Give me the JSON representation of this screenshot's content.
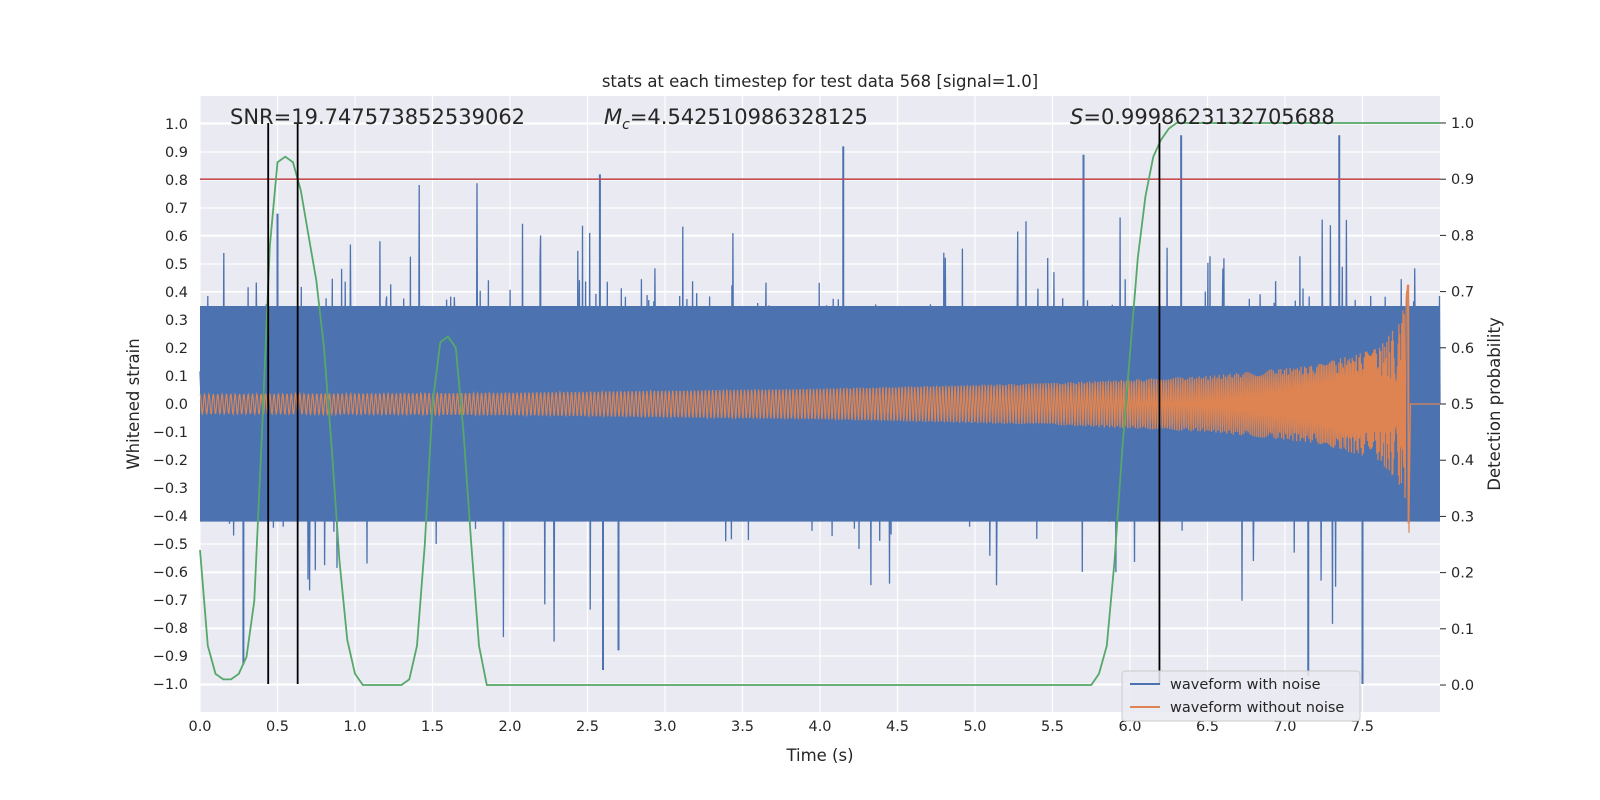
{
  "chart_data": {
    "type": "line",
    "title": "stats at each timestep for test data 568 [signal=1.0]",
    "xlabel": "Time (s)",
    "ylabel": "Whitened strain",
    "y2label": "Detection probability",
    "xlim": [
      0.0,
      8.0
    ],
    "ylim": [
      -1.1,
      1.1
    ],
    "y2lim": [
      -0.048,
      1.048
    ],
    "x_ticks": [
      "0.0",
      "0.5",
      "1.0",
      "1.5",
      "2.0",
      "2.5",
      "3.0",
      "3.5",
      "4.0",
      "4.5",
      "5.0",
      "5.5",
      "6.0",
      "6.5",
      "7.0",
      "7.5"
    ],
    "y_ticks": [
      "1.0",
      "0.9",
      "0.8",
      "0.7",
      "0.6",
      "0.5",
      "0.4",
      "0.3",
      "0.2",
      "0.1",
      "0.0",
      "−0.1",
      "−0.2",
      "−0.3",
      "−0.4",
      "−0.5",
      "−0.6",
      "−0.7",
      "−0.8",
      "−0.9",
      "−1.0"
    ],
    "y2_ticks": [
      "1.0",
      "0.9",
      "0.8",
      "0.7",
      "0.6",
      "0.5",
      "0.4",
      "0.3",
      "0.2",
      "0.1",
      "0.0"
    ],
    "annotations": {
      "snr": "SNR=19.747573852539062",
      "mc_symbol": "M",
      "mc_sub": "c",
      "mc_value": "=4.542510986328125",
      "s_symbol": "S",
      "s_value": "=0.9998623132705688"
    },
    "threshold": {
      "value": 0.9,
      "axis": "y2",
      "color": "#c44e52"
    },
    "vertical_markers": [
      0.44,
      0.63,
      6.19
    ],
    "series": [
      {
        "name": "waveform with noise",
        "color": "#4c72b0",
        "axis": "y",
        "x_range": [
          0.0,
          8.0
        ],
        "spike_peaks": [
          {
            "x": 0.28,
            "y": -0.93
          },
          {
            "x": 0.5,
            "y": 0.68
          },
          {
            "x": 2.58,
            "y": 0.82
          },
          {
            "x": 2.6,
            "y": -0.95
          },
          {
            "x": 2.7,
            "y": -0.88
          },
          {
            "x": 4.15,
            "y": 0.92
          },
          {
            "x": 5.7,
            "y": 0.89
          },
          {
            "x": 6.33,
            "y": 0.96
          },
          {
            "x": 7.35,
            "y": 0.96
          },
          {
            "x": 7.5,
            "y": -1.0
          },
          {
            "x": 7.15,
            "y": -0.97
          }
        ]
      },
      {
        "name": "waveform without noise",
        "color": "#dd8452",
        "axis": "y",
        "amplitude": [
          {
            "x": 0.0,
            "y": 0.035
          },
          {
            "x": 2.0,
            "y": 0.04
          },
          {
            "x": 4.0,
            "y": 0.055
          },
          {
            "x": 5.5,
            "y": 0.075
          },
          {
            "x": 6.5,
            "y": 0.1
          },
          {
            "x": 7.2,
            "y": 0.14
          },
          {
            "x": 7.6,
            "y": 0.2
          },
          {
            "x": 7.75,
            "y": 0.3
          },
          {
            "x": 7.8,
            "y": 0.46
          }
        ],
        "merger_time": 7.8,
        "end_time": 8.0
      },
      {
        "name": "detection probability",
        "color": "#55a868",
        "axis": "y2",
        "x": [
          0.0,
          0.05,
          0.1,
          0.15,
          0.2,
          0.25,
          0.3,
          0.35,
          0.4,
          0.45,
          0.5,
          0.55,
          0.6,
          0.65,
          0.7,
          0.75,
          0.8,
          0.85,
          0.9,
          0.95,
          1.0,
          1.05,
          1.1,
          1.15,
          1.2,
          1.25,
          1.3,
          1.35,
          1.4,
          1.45,
          1.5,
          1.55,
          1.6,
          1.65,
          1.7,
          1.75,
          1.8,
          1.85,
          1.9,
          1.95,
          2.0,
          2.5,
          3.0,
          3.5,
          4.0,
          4.5,
          5.0,
          5.5,
          5.7,
          5.75,
          5.8,
          5.85,
          5.9,
          5.95,
          6.0,
          6.05,
          6.1,
          6.15,
          6.2,
          6.25,
          6.3,
          6.35,
          6.5,
          7.0,
          7.5,
          8.0
        ],
        "y": [
          0.24,
          0.07,
          0.02,
          0.01,
          0.01,
          0.02,
          0.05,
          0.15,
          0.45,
          0.78,
          0.93,
          0.94,
          0.93,
          0.88,
          0.8,
          0.72,
          0.6,
          0.42,
          0.22,
          0.08,
          0.02,
          0.0,
          0.0,
          0.0,
          0.0,
          0.0,
          0.0,
          0.01,
          0.07,
          0.25,
          0.5,
          0.61,
          0.62,
          0.6,
          0.45,
          0.25,
          0.07,
          0.0,
          0.0,
          0.0,
          0.0,
          0.0,
          0.0,
          0.0,
          0.0,
          0.0,
          0.0,
          0.0,
          0.0,
          0.0,
          0.02,
          0.07,
          0.22,
          0.42,
          0.59,
          0.76,
          0.87,
          0.94,
          0.97,
          0.99,
          1.0,
          1.0,
          1.0,
          1.0,
          1.0,
          1.0
        ]
      }
    ],
    "legend_position": "lower right"
  },
  "colors": {
    "plot_bg": "#eaeaf2",
    "grid": "#ffffff",
    "marker": "#000000"
  }
}
